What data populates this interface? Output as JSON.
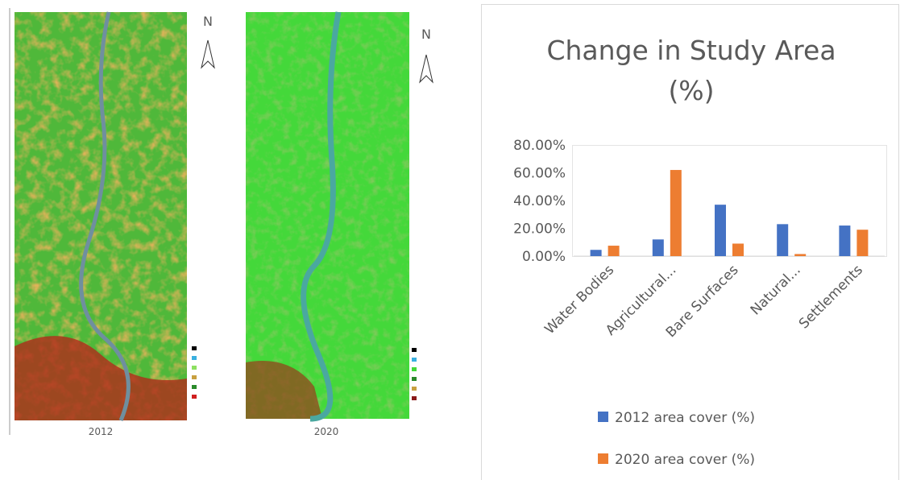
{
  "maps": [
    {
      "year": "2012",
      "north": "N"
    },
    {
      "year": "2020",
      "north": "N"
    }
  ],
  "chart_data": {
    "type": "bar",
    "title": "Change in Study Area (%)",
    "categories": [
      "Water Bodies",
      "Agricultural...",
      "Bare Surfaces",
      "Natural...",
      "Settlements"
    ],
    "series": [
      {
        "name": "2012 area cover (%)",
        "color": "#4472c4",
        "values": [
          4.5,
          12,
          37,
          23,
          22
        ]
      },
      {
        "name": "2020 area cover (%)",
        "color": "#ed7d31",
        "values": [
          7.5,
          62,
          9,
          1.5,
          19
        ]
      }
    ],
    "ylim": [
      0,
      80
    ],
    "yticks": [
      {
        "value": 0,
        "label": "0.00%"
      },
      {
        "value": 20,
        "label": "20.00%"
      },
      {
        "value": 40,
        "label": "40.00%"
      },
      {
        "value": 60,
        "label": "60.00%"
      },
      {
        "value": 80,
        "label": "80.00%"
      }
    ],
    "grid": false,
    "legend": "bottom"
  }
}
